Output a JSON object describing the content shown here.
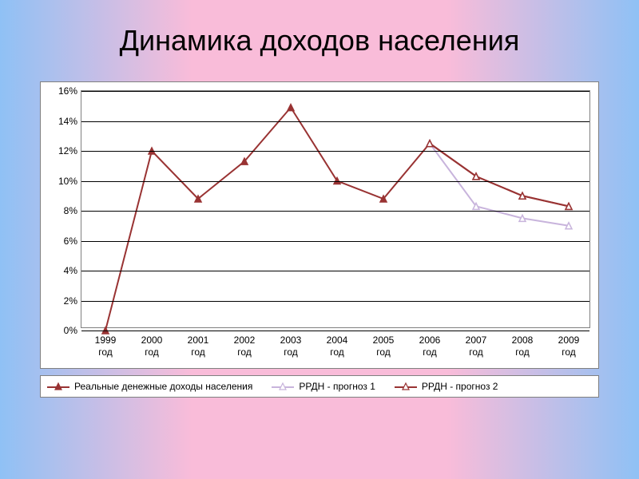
{
  "title": "Динамика доходов населения",
  "chart": {
    "type": "line",
    "background_color": "#ffffff",
    "grid_color": "#000000",
    "border_color": "#808080",
    "title_fontsize": 36,
    "label_fontsize": 12,
    "ylim": [
      0,
      16
    ],
    "ytick_step": 2,
    "y_ticks": [
      "0%",
      "2%",
      "4%",
      "6%",
      "8%",
      "10%",
      "12%",
      "14%",
      "16%"
    ],
    "x_labels": [
      "1999 год",
      "2000 год",
      "2001 год",
      "2002 год",
      "2003 год",
      "2004 год",
      "2005 год",
      "2006 год",
      "2007 год",
      "2008 год",
      "2009 год"
    ],
    "series": [
      {
        "name": "Реальные денежные доходы населения",
        "color": "#993333",
        "line_width": 2,
        "marker": "triangle-filled",
        "marker_size": 8,
        "values": [
          0,
          12,
          8.8,
          11.3,
          14.9,
          10,
          8.8,
          12.5,
          10.3,
          9,
          8.3
        ]
      },
      {
        "name": "РРДН - прогноз 1",
        "color": "#c8b4dc",
        "line_width": 2,
        "marker": "triangle-open",
        "marker_size": 8,
        "values": [
          null,
          null,
          null,
          null,
          null,
          null,
          null,
          12.5,
          8.3,
          7.5,
          7
        ]
      },
      {
        "name": "РРДН - прогноз 2",
        "color": "#993333",
        "line_width": 2,
        "marker": "triangle-open",
        "marker_size": 8,
        "values": [
          null,
          null,
          null,
          null,
          null,
          null,
          null,
          12.5,
          10.3,
          9,
          8.3
        ]
      }
    ]
  },
  "slide_bg_gradient": [
    "#8fc1f5",
    "#f9bcd9",
    "#f9bcd9",
    "#8fc1f5"
  ]
}
